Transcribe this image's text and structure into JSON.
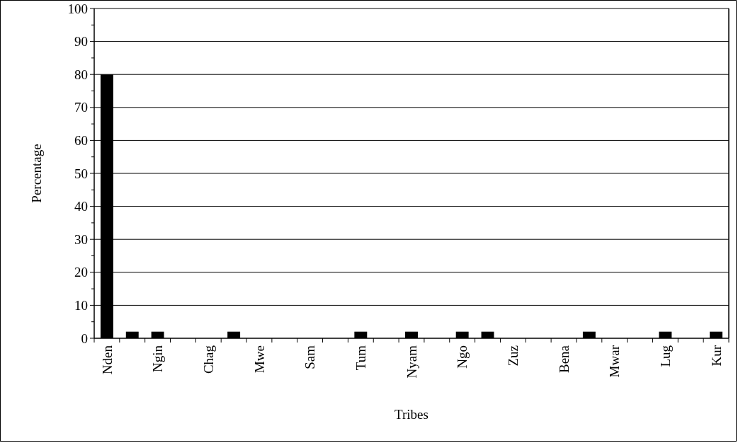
{
  "chart_data": {
    "type": "bar",
    "xlabel": "Tribes",
    "ylabel": "Percentage",
    "categories": [
      "Nden",
      null,
      "Ngin",
      null,
      "Chag",
      null,
      "Mwe",
      null,
      "Sam",
      null,
      "Tum",
      null,
      "Nyam",
      null,
      "Ngo",
      null,
      "Zuz",
      null,
      "Bena",
      null,
      "Mwar",
      null,
      "Lug",
      null,
      "Kur"
    ],
    "values": [
      80,
      2,
      2,
      0,
      0,
      2,
      0,
      0,
      0,
      0,
      2,
      0,
      2,
      0,
      2,
      2,
      0,
      0,
      0,
      2,
      0,
      0,
      2,
      0,
      2
    ],
    "color": "#000000",
    "ylim": [
      0,
      100
    ],
    "yticks": [
      0,
      {
        "value": 5,
        "label": null
      },
      10,
      {
        "value": 15,
        "label": null
      },
      20,
      {
        "value": 25,
        "label": null
      },
      30,
      {
        "value": 35,
        "label": null
      },
      40,
      {
        "value": 45,
        "label": null
      },
      50,
      {
        "value": 55,
        "label": null
      },
      60,
      {
        "value": 65,
        "label": null
      },
      70,
      {
        "value": 75,
        "label": null
      },
      80,
      {
        "value": 85,
        "label": null
      },
      90,
      {
        "value": 95,
        "label": null
      },
      100
    ],
    "grid": "y"
  }
}
